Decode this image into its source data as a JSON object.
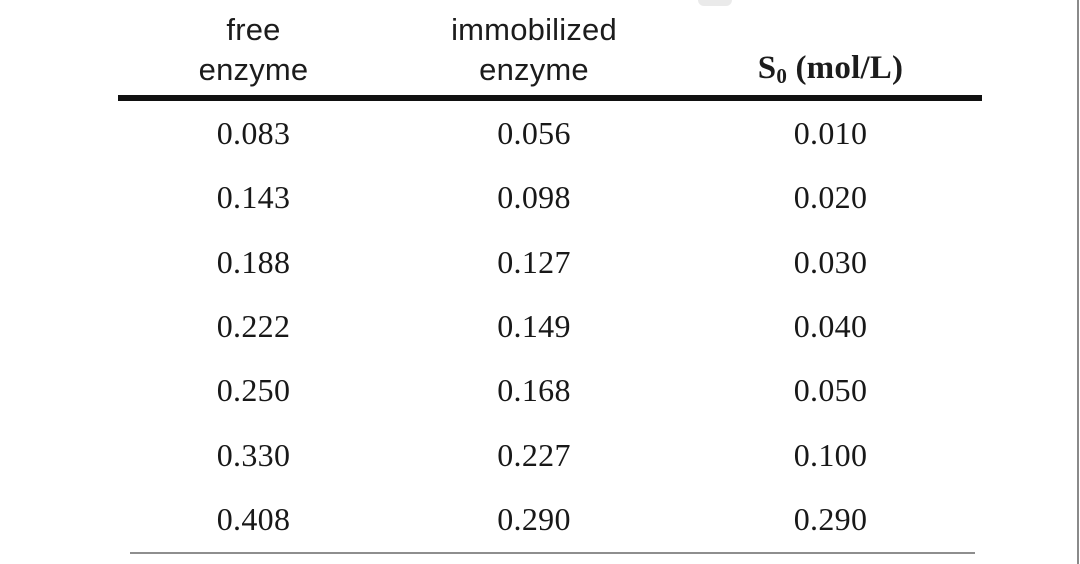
{
  "table": {
    "headers": {
      "col1": {
        "line1": "free",
        "line2": "enzyme"
      },
      "col2": {
        "line1": "immobilized",
        "line2": "enzyme"
      },
      "col3": {
        "prefix": "S",
        "subscript": "0",
        "suffix": " (mol/L)"
      }
    },
    "rows": [
      [
        "0.083",
        "0.056",
        "0.010"
      ],
      [
        "0.143",
        "0.098",
        "0.020"
      ],
      [
        "0.188",
        "0.127",
        "0.030"
      ],
      [
        "0.222",
        "0.149",
        "0.040"
      ],
      [
        "0.250",
        "0.168",
        "0.050"
      ],
      [
        "0.330",
        "0.227",
        "0.100"
      ],
      [
        "0.408",
        "0.290",
        "0.290"
      ]
    ]
  },
  "colors": {
    "text": "#1c1c1c",
    "thick_rule": "#111111",
    "thin_rule": "#8e8e8e",
    "right_edge_line": "#8a8a8a",
    "background": "#ffffff"
  },
  "chart_data": {
    "type": "table",
    "title": "",
    "columns": [
      "free enzyme",
      "immobilized enzyme",
      "S0 (mol/L)"
    ],
    "rows": [
      [
        0.083,
        0.056,
        0.01
      ],
      [
        0.143,
        0.098,
        0.02
      ],
      [
        0.188,
        0.127,
        0.03
      ],
      [
        0.222,
        0.149,
        0.04
      ],
      [
        0.25,
        0.168,
        0.05
      ],
      [
        0.33,
        0.227,
        0.1
      ],
      [
        0.408,
        0.29,
        0.29
      ]
    ]
  }
}
